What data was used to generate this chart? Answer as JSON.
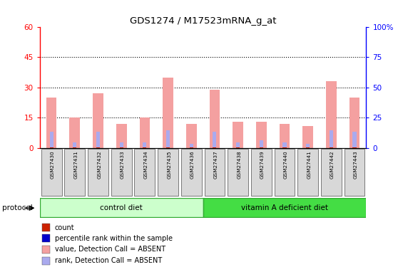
{
  "title": "GDS1274 / M17523mRNA_g_at",
  "samples": [
    "GSM27430",
    "GSM27431",
    "GSM27432",
    "GSM27433",
    "GSM27434",
    "GSM27435",
    "GSM27436",
    "GSM27437",
    "GSM27438",
    "GSM27439",
    "GSM27440",
    "GSM27441",
    "GSM27442",
    "GSM27443"
  ],
  "pink_values": [
    25,
    15,
    27,
    12,
    15,
    35,
    12,
    29,
    13,
    13,
    12,
    11,
    33,
    25
  ],
  "blue_values": [
    8,
    3,
    8,
    3,
    3,
    9,
    2,
    8,
    3,
    4,
    3,
    2,
    9,
    8
  ],
  "red_values": [
    0.4,
    0.4,
    0.4,
    0.4,
    0.4,
    0.4,
    0.4,
    0.4,
    0.4,
    0.4,
    0.4,
    0.4,
    0.4,
    0.4
  ],
  "ylim_left": [
    0,
    60
  ],
  "ylim_right": [
    0,
    100
  ],
  "yticks_left": [
    0,
    15,
    30,
    45,
    60
  ],
  "ytick_labels_left": [
    "0",
    "15",
    "30",
    "45",
    "60"
  ],
  "yticks_right": [
    0,
    25,
    50,
    75,
    100
  ],
  "ytick_labels_right": [
    "0",
    "25",
    "50",
    "75",
    "100%"
  ],
  "grid_values": [
    15,
    30,
    45
  ],
  "control_diet_samples": 7,
  "vitamin_a_samples": 7,
  "bg_color": "#ffffff",
  "bar_pink": "#f4a0a0",
  "bar_blue": "#aaaaee",
  "bar_red": "#cc2200",
  "control_diet_color": "#ccffcc",
  "vitamin_a_color": "#44dd44",
  "sample_box_color": "#d8d8d8",
  "protocol_border_color": "#33aa33",
  "legend_items": [
    "count",
    "percentile rank within the sample",
    "value, Detection Call = ABSENT",
    "rank, Detection Call = ABSENT"
  ],
  "legend_colors": [
    "#cc2200",
    "#0000cc",
    "#f4a0a0",
    "#aaaaee"
  ]
}
